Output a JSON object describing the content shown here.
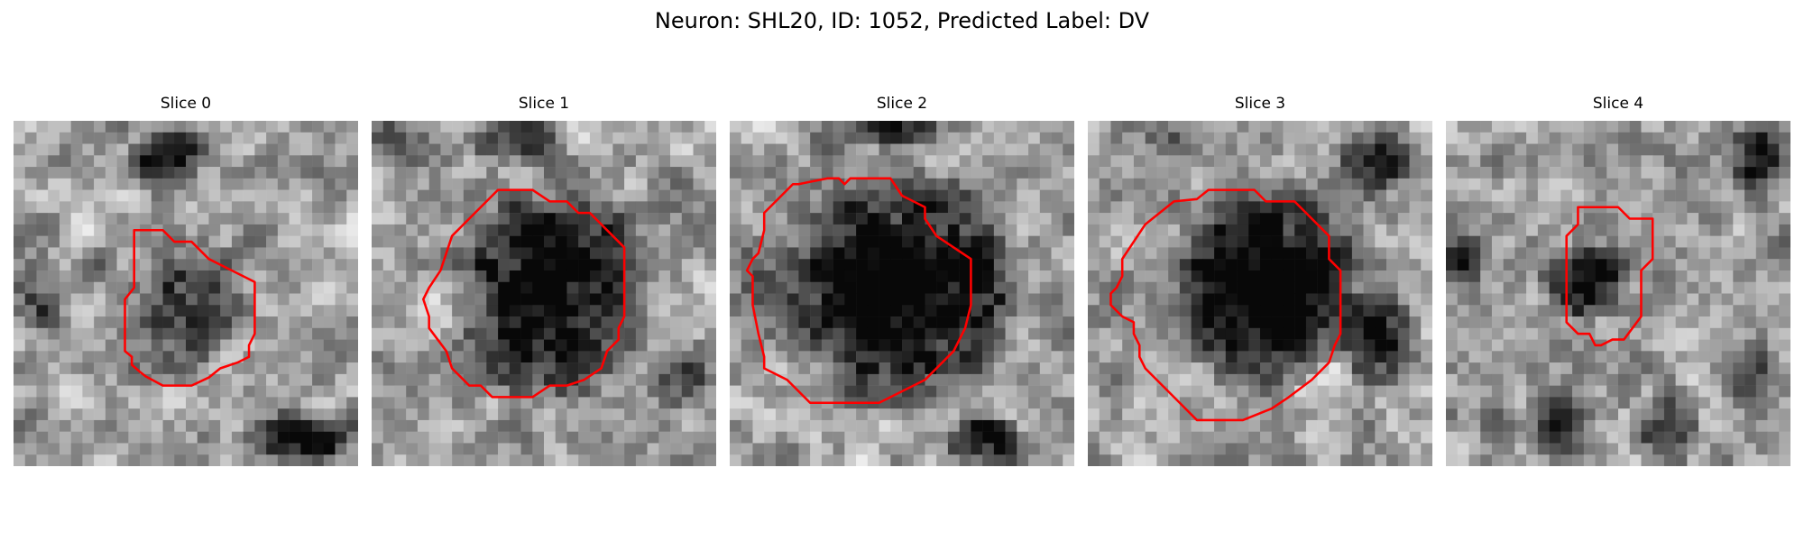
{
  "figure": {
    "title": "Neuron: SHL20, ID: 1052, Predicted Label: DV"
  },
  "slices": [
    {
      "label": "Slice 0"
    },
    {
      "label": "Slice 1"
    },
    {
      "label": "Slice 2"
    },
    {
      "label": "Slice 3"
    },
    {
      "label": "Slice 4"
    }
  ],
  "colors": {
    "contour": "#ff0000",
    "colormap": "gray"
  }
}
